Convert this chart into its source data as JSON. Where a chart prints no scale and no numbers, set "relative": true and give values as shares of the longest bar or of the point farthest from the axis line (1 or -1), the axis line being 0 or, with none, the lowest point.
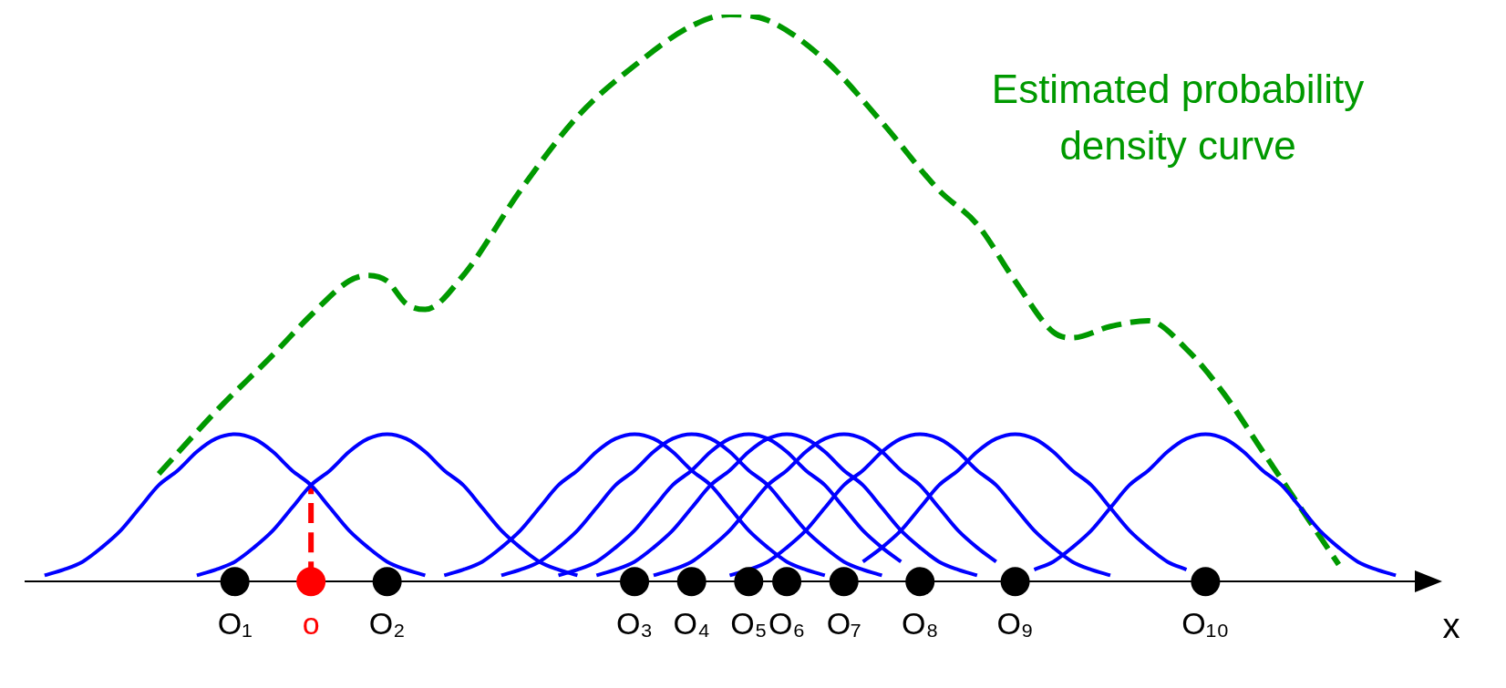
{
  "chart_data": {
    "type": "line",
    "relative": true,
    "xlabel": "x",
    "legend": false,
    "grid": false,
    "tick_labels": "x",
    "categories": [
      null,
      null,
      null,
      null,
      null,
      null,
      null,
      null,
      null,
      null,
      null,
      "O₁",
      null,
      null,
      null,
      "o",
      null,
      null,
      null,
      "O₂",
      null,
      null,
      null,
      null,
      null,
      null,
      null,
      null,
      null,
      null,
      null,
      null,
      "O₃",
      null,
      null,
      "O₄",
      null,
      null,
      "O₅",
      null,
      "O₆",
      null,
      null,
      "O₇",
      null,
      null,
      null,
      "O₈",
      null,
      null,
      null,
      null,
      "O₉",
      null,
      null,
      null,
      null,
      null,
      null,
      null,
      null,
      null,
      "O₁₀",
      null,
      null,
      null,
      null,
      null,
      null,
      null,
      null,
      null,
      null,
      null
    ],
    "series": [
      {
        "color": "#0000ff",
        "values": [
          null,
          0.011,
          0.021,
          0.035,
          0.06,
          0.09,
          0.13,
          0.17,
          0.196,
          0.229,
          0.252,
          0.26,
          0.252,
          0.229,
          0.196,
          0.17,
          0.13,
          0.09,
          0.06,
          0.035,
          0.021,
          0.011,
          null,
          null,
          null,
          null,
          null,
          null,
          null,
          null,
          null,
          null,
          null,
          null,
          null,
          null,
          null,
          null,
          null,
          null,
          null,
          null,
          null,
          null,
          null,
          null,
          null,
          null,
          null,
          null,
          null,
          null,
          null,
          null,
          null,
          null,
          null,
          null,
          null,
          null,
          null,
          null,
          null,
          null,
          null,
          null,
          null,
          null,
          null,
          null,
          null,
          null,
          null,
          null
        ]
      },
      {
        "color": "#0000ff",
        "values": [
          null,
          null,
          null,
          null,
          null,
          null,
          null,
          null,
          null,
          0.011,
          0.021,
          0.035,
          0.06,
          0.09,
          0.13,
          0.17,
          0.196,
          0.229,
          0.252,
          0.26,
          0.252,
          0.229,
          0.196,
          0.17,
          0.13,
          0.09,
          0.06,
          0.035,
          0.021,
          0.011,
          null,
          null,
          null,
          null,
          null,
          null,
          null,
          null,
          null,
          null,
          null,
          null,
          null,
          null,
          null,
          null,
          null,
          null,
          null,
          null,
          null,
          null,
          null,
          null,
          null,
          null,
          null,
          null,
          null,
          null,
          null,
          null,
          null,
          null,
          null,
          null,
          null,
          null,
          null,
          null,
          null,
          null,
          null,
          null
        ]
      },
      {
        "color": "#0000ff",
        "values": [
          null,
          null,
          null,
          null,
          null,
          null,
          null,
          null,
          null,
          null,
          null,
          null,
          null,
          null,
          null,
          null,
          null,
          null,
          null,
          null,
          null,
          null,
          0.011,
          0.021,
          0.035,
          0.06,
          0.09,
          0.13,
          0.17,
          0.196,
          0.229,
          0.252,
          0.26,
          0.252,
          0.229,
          0.196,
          0.17,
          0.13,
          0.09,
          0.06,
          0.035,
          0.021,
          0.011,
          null,
          null,
          null,
          null,
          null,
          null,
          null,
          null,
          null,
          null,
          null,
          null,
          null,
          null,
          null,
          null,
          null,
          null,
          null,
          null,
          null,
          null,
          null,
          null,
          null,
          null,
          null,
          null,
          null,
          null,
          null
        ]
      },
      {
        "color": "#0000ff",
        "values": [
          null,
          null,
          null,
          null,
          null,
          null,
          null,
          null,
          null,
          null,
          null,
          null,
          null,
          null,
          null,
          null,
          null,
          null,
          null,
          null,
          null,
          null,
          null,
          null,
          null,
          0.011,
          0.021,
          0.035,
          0.06,
          0.09,
          0.13,
          0.17,
          0.196,
          0.229,
          0.252,
          0.26,
          0.252,
          0.229,
          0.196,
          0.17,
          0.13,
          0.09,
          0.06,
          0.035,
          0.021,
          0.011,
          null,
          null,
          null,
          null,
          null,
          null,
          null,
          null,
          null,
          null,
          null,
          null,
          null,
          null,
          null,
          null,
          null,
          null,
          null,
          null,
          null,
          null,
          null,
          null,
          null,
          null,
          null,
          null
        ]
      },
      {
        "color": "#0000ff",
        "values": [
          null,
          null,
          null,
          null,
          null,
          null,
          null,
          null,
          null,
          null,
          null,
          null,
          null,
          null,
          null,
          null,
          null,
          null,
          null,
          null,
          null,
          null,
          null,
          null,
          null,
          null,
          null,
          null,
          0.011,
          0.021,
          0.035,
          0.06,
          0.09,
          0.13,
          0.17,
          0.196,
          0.229,
          0.252,
          0.26,
          0.252,
          0.229,
          0.196,
          0.17,
          0.13,
          0.09,
          0.06,
          0.035,
          null,
          null,
          null,
          null,
          null,
          null,
          null,
          null,
          null,
          null,
          null,
          null,
          null,
          null,
          null,
          null,
          null,
          null,
          null,
          null,
          null,
          null,
          null,
          null,
          null,
          null,
          null
        ]
      },
      {
        "color": "#0000ff",
        "values": [
          null,
          null,
          null,
          null,
          null,
          null,
          null,
          null,
          null,
          null,
          null,
          null,
          null,
          null,
          null,
          null,
          null,
          null,
          null,
          null,
          null,
          null,
          null,
          null,
          null,
          null,
          null,
          null,
          null,
          null,
          0.011,
          0.021,
          0.035,
          0.06,
          0.09,
          0.13,
          0.17,
          0.196,
          0.229,
          0.252,
          0.26,
          0.252,
          0.229,
          0.196,
          0.17,
          0.13,
          0.09,
          0.06,
          0.035,
          0.021,
          0.011,
          null,
          null,
          null,
          null,
          null,
          null,
          null,
          null,
          null,
          null,
          null,
          null,
          null,
          null,
          null,
          null,
          null,
          null,
          null,
          null,
          null,
          null,
          null
        ]
      },
      {
        "color": "#0000ff",
        "values": [
          null,
          null,
          null,
          null,
          null,
          null,
          null,
          null,
          null,
          null,
          null,
          null,
          null,
          null,
          null,
          null,
          null,
          null,
          null,
          null,
          null,
          null,
          null,
          null,
          null,
          null,
          null,
          null,
          null,
          null,
          null,
          null,
          null,
          0.011,
          0.021,
          0.035,
          0.06,
          0.09,
          0.13,
          0.17,
          0.196,
          0.229,
          0.252,
          0.26,
          0.252,
          0.229,
          0.196,
          0.17,
          0.13,
          0.09,
          0.06,
          0.035,
          null,
          null,
          null,
          null,
          null,
          null,
          null,
          null,
          null,
          null,
          null,
          null,
          null,
          null,
          null,
          null,
          null,
          null,
          null,
          null,
          null,
          null
        ]
      },
      {
        "color": "#0000ff",
        "values": [
          null,
          null,
          null,
          null,
          null,
          null,
          null,
          null,
          null,
          null,
          null,
          null,
          null,
          null,
          null,
          null,
          null,
          null,
          null,
          null,
          null,
          null,
          null,
          null,
          null,
          null,
          null,
          null,
          null,
          null,
          null,
          null,
          null,
          null,
          null,
          null,
          null,
          0.011,
          0.021,
          0.035,
          0.06,
          0.09,
          0.13,
          0.17,
          0.196,
          0.229,
          0.252,
          0.26,
          0.252,
          0.229,
          0.196,
          0.17,
          0.13,
          0.09,
          0.06,
          0.035,
          0.021,
          0.011,
          null,
          null,
          null,
          null,
          null,
          null,
          null,
          null,
          null,
          null,
          null,
          null,
          null,
          null,
          null,
          null
        ]
      },
      {
        "color": "#0000ff",
        "values": [
          null,
          null,
          null,
          null,
          null,
          null,
          null,
          null,
          null,
          null,
          null,
          null,
          null,
          null,
          null,
          null,
          null,
          null,
          null,
          null,
          null,
          null,
          null,
          null,
          null,
          null,
          null,
          null,
          null,
          null,
          null,
          null,
          null,
          null,
          null,
          null,
          null,
          null,
          null,
          null,
          null,
          null,
          null,
          null,
          0.035,
          0.06,
          0.09,
          0.13,
          0.17,
          0.196,
          0.229,
          0.252,
          0.26,
          0.252,
          0.229,
          0.196,
          0.17,
          0.13,
          0.09,
          0.06,
          0.035,
          0.021,
          null,
          null,
          null,
          null,
          null,
          null,
          null,
          null,
          null,
          null,
          null,
          null
        ]
      },
      {
        "color": "#0000ff",
        "values": [
          null,
          null,
          null,
          null,
          null,
          null,
          null,
          null,
          null,
          null,
          null,
          null,
          null,
          null,
          null,
          null,
          null,
          null,
          null,
          null,
          null,
          null,
          null,
          null,
          null,
          null,
          null,
          null,
          null,
          null,
          null,
          null,
          null,
          null,
          null,
          null,
          null,
          null,
          null,
          null,
          null,
          null,
          null,
          null,
          null,
          null,
          null,
          null,
          null,
          null,
          null,
          null,
          null,
          0.021,
          0.035,
          0.06,
          0.09,
          0.13,
          0.17,
          0.196,
          0.229,
          0.252,
          0.26,
          0.252,
          0.229,
          0.196,
          0.17,
          0.13,
          0.09,
          0.06,
          0.035,
          0.021,
          0.011,
          null
        ]
      },
      {
        "name": "Estimated probability density curve",
        "color": "#009900",
        "line_style": "dashed",
        "values": [
          null,
          null,
          null,
          null,
          null,
          null,
          null,
          0.19,
          null,
          null,
          0.3,
          null,
          null,
          0.4,
          null,
          0.47,
          null,
          0.53,
          0.54,
          0.53,
          0.49,
          0.48,
          null,
          0.54,
          null,
          null,
          0.69,
          null,
          null,
          0.82,
          null,
          null,
          0.91,
          null,
          null,
          0.98,
          null,
          1,
          null,
          0.99,
          null,
          null,
          0.92,
          null,
          null,
          0.81,
          null,
          null,
          0.69,
          null,
          0.63,
          null,
          0.53,
          null,
          0.44,
          0.43,
          null,
          0.45,
          null,
          0.46,
          null,
          0.41,
          null,
          0.33,
          null,
          0.23,
          null,
          0.13,
          null,
          0.03,
          null,
          null,
          null,
          null
        ]
      },
      {
        "color": "#ff0000",
        "line_style": "dashed",
        "x": [
          "o",
          "o"
        ],
        "values": [
          0,
          0.17
        ]
      },
      {
        "type": "scatter",
        "color": "#000000",
        "marker": "circle",
        "x": [
          "O₁",
          "O₂",
          "O₃",
          "O₄",
          "O₅",
          "O₆",
          "O₇",
          "O₈",
          "O₉",
          "O₁₀"
        ],
        "values": [
          0,
          0,
          0,
          0,
          0,
          0,
          0,
          0,
          0,
          0
        ]
      },
      {
        "type": "scatter",
        "color": "#ff0000",
        "marker": "circle",
        "x": [
          "o"
        ],
        "values": [
          0
        ]
      }
    ]
  }
}
